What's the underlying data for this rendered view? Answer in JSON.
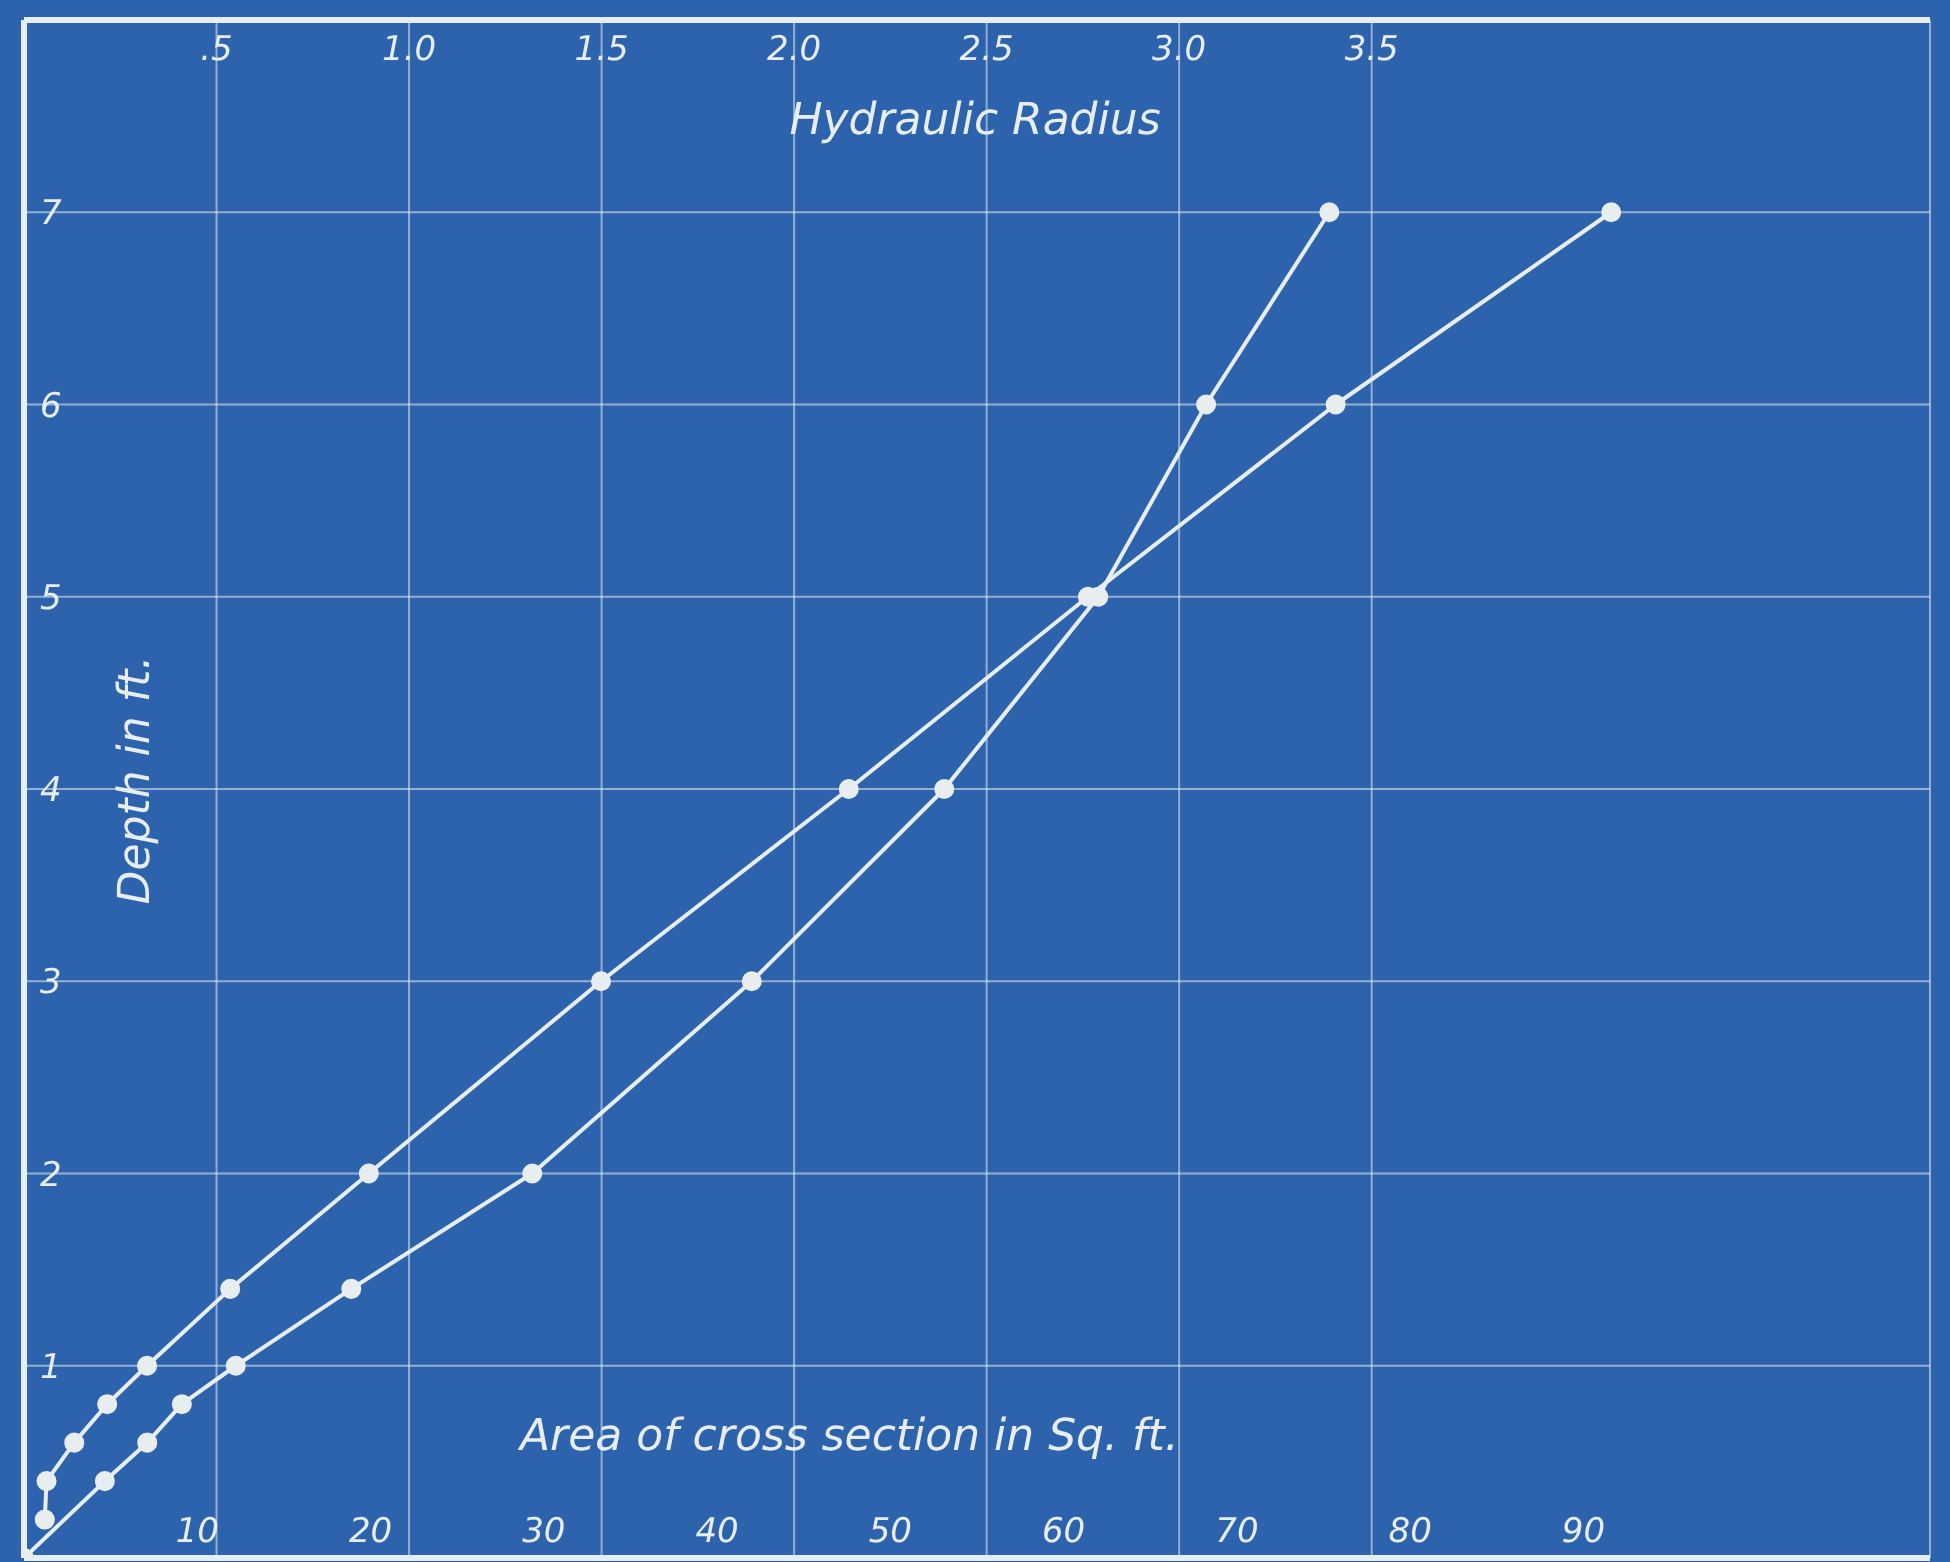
{
  "chart_data": {
    "type": "line",
    "xlabel": "Area of cross section in Sq. ft.",
    "x2label": "Hydraulic Radius",
    "ylabel": "Depth in ft.",
    "xlim": [
      0,
      110
    ],
    "xticks": [
      10,
      20,
      30,
      40,
      50,
      60,
      70,
      80,
      90
    ],
    "x2lim": [
      0,
      4.95
    ],
    "x2ticks": [
      {
        "value": 0.5,
        "label": ".5"
      },
      {
        "value": 1,
        "label": "1.0"
      },
      1.5,
      {
        "value": 2,
        "label": "2.0"
      },
      2.5,
      {
        "value": 3,
        "label": "3.0"
      },
      3.5
    ],
    "ylim": [
      0,
      8
    ],
    "yticks": [
      1,
      2,
      3,
      4,
      5,
      6,
      7
    ],
    "grid": true,
    "marker": "circle",
    "line_style": "solid",
    "series": [
      {
        "color": "#e8eef0",
        "x": [
          1.2,
          1.3,
          2.9,
          4.8,
          7.1,
          11.9,
          19.9,
          33.3,
          47.6,
          61.4,
          75.7,
          91.6
        ],
        "values": [
          0.2,
          0.4,
          0.6,
          0.8,
          1,
          1.4,
          2,
          3,
          4,
          5,
          6,
          7
        ]
      },
      {
        "color": "#e8eef0",
        "axis": "x2",
        "x": [
          0,
          0.21,
          0.32,
          0.41,
          0.55,
          0.85,
          1.32,
          1.89,
          2.39,
          2.79,
          3.07,
          3.39
        ],
        "values": [
          0,
          0.4,
          0.6,
          0.8,
          1,
          1.4,
          2,
          3,
          4,
          5,
          6,
          7
        ]
      }
    ]
  }
}
